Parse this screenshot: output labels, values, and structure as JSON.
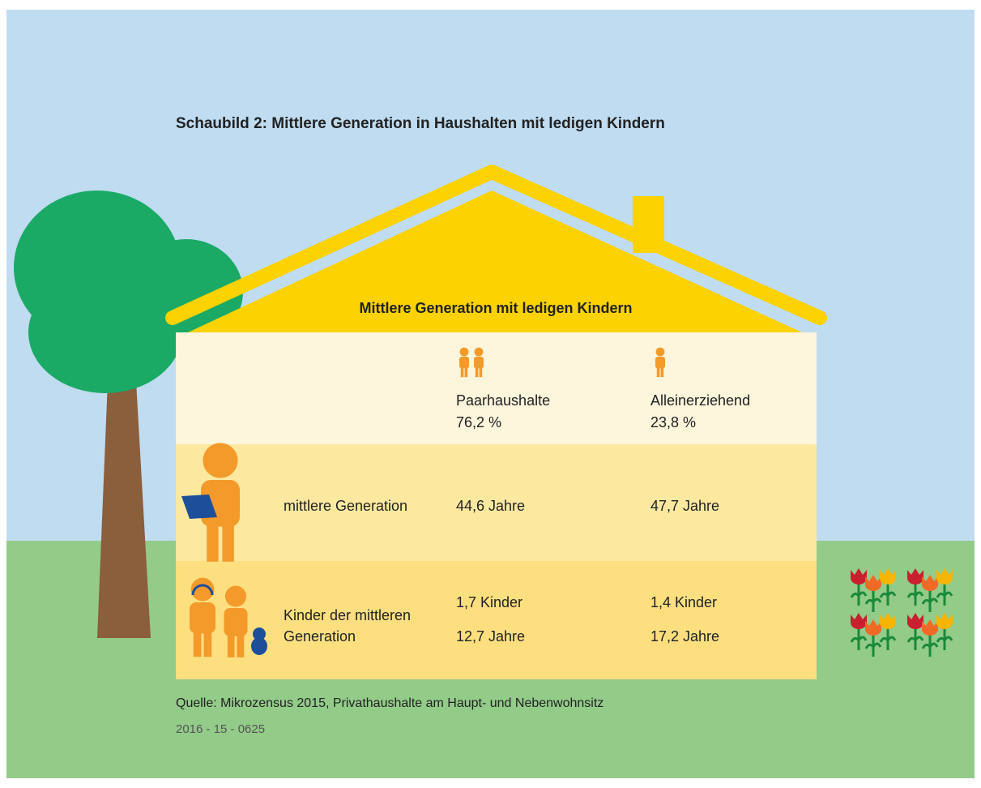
{
  "title": "Schaubild 2: Mittlere Generation in Haushalten mit ledigen Kindern",
  "house": {
    "label": "Mittlere Generation mit ledigen Kindern",
    "columns": [
      {
        "label": "Paarhaushalte",
        "share": "76,2 %"
      },
      {
        "label": "Alleinerziehend",
        "share": "23,8 %"
      }
    ],
    "rows": [
      {
        "label": [
          "mittlere Generation"
        ],
        "cells": [
          [
            "44,6 Jahre"
          ],
          [
            "47,7 Jahre"
          ]
        ]
      },
      {
        "label": [
          "Kinder der mittleren",
          "Generation"
        ],
        "cells": [
          [
            "1,7 Kinder",
            "12,7 Jahre"
          ],
          [
            "1,4 Kinder",
            "17,2 Jahre"
          ]
        ]
      }
    ]
  },
  "source": "Quelle: Mikrozensus 2015, Privathaushalte am Haupt- und Nebenwohnsitz",
  "code": "2016 - 15 - 0625"
}
